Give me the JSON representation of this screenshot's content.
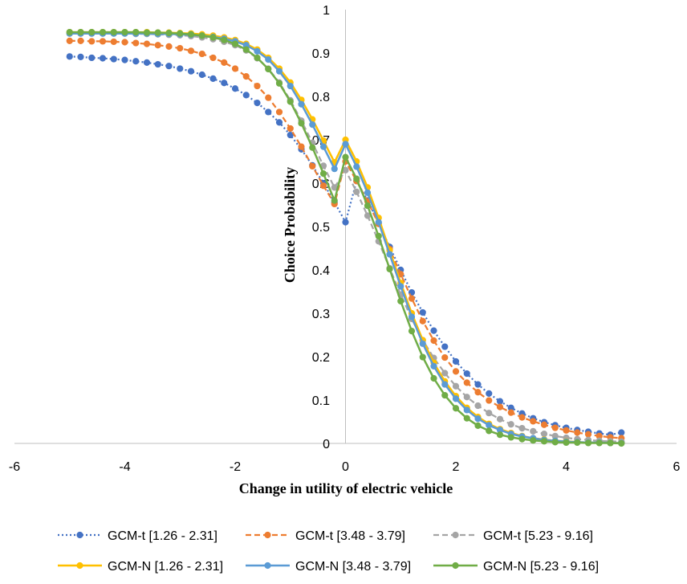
{
  "chart_data": {
    "type": "line",
    "title": "",
    "xlabel": "Change in utility of electric vehicle",
    "ylabel": "Choice Probability",
    "xlim": [
      -6,
      6
    ],
    "ylim": [
      0,
      1
    ],
    "grid": false,
    "legend_position": "bottom",
    "x_ticks": [
      "-6",
      "-4",
      "-2",
      "0",
      "2",
      "4",
      "6"
    ],
    "y_ticks": [
      "0",
      "0.1",
      "0.2",
      "0.3",
      "0.4",
      "0.5",
      "0.6",
      "0.7",
      "0.8",
      "0.9",
      "1"
    ],
    "x": [
      -5,
      -4.8,
      -4.6,
      -4.4,
      -4.2,
      -4,
      -3.8,
      -3.6,
      -3.4,
      -3.2,
      -3,
      -2.8,
      -2.6,
      -2.4,
      -2.2,
      -2,
      -1.8,
      -1.6,
      -1.4,
      -1.2,
      -1,
      -0.8,
      -0.6,
      -0.4,
      -0.2,
      0,
      0.2,
      0.4,
      0.6,
      0.8,
      1,
      1.2,
      1.4,
      1.6,
      1.8,
      2,
      2.2,
      2.4,
      2.6,
      2.8,
      3,
      3.2,
      3.4,
      3.6,
      3.8,
      4,
      4.2,
      4.4,
      4.6,
      4.8,
      5
    ],
    "series": [
      {
        "name": "GCM-t [1.26 - 2.31]",
        "color": "#4472C4",
        "dash": "dotted",
        "values": [
          0.892,
          0.891,
          0.889,
          0.888,
          0.886,
          0.884,
          0.881,
          0.878,
          0.874,
          0.87,
          0.864,
          0.858,
          0.85,
          0.841,
          0.831,
          0.818,
          0.803,
          0.785,
          0.764,
          0.74,
          0.711,
          0.678,
          0.641,
          0.6,
          0.556,
          0.51,
          0.605,
          0.56,
          0.508,
          0.453,
          0.4,
          0.348,
          0.302,
          0.26,
          0.223,
          0.189,
          0.161,
          0.136,
          0.115,
          0.097,
          0.082,
          0.069,
          0.058,
          0.049,
          0.042,
          0.036,
          0.031,
          0.027,
          0.023,
          0.02,
          0.025
        ]
      },
      {
        "name": "GCM-t [3.48 - 3.79]",
        "color": "#ED7D31",
        "dash": "dashed",
        "values": [
          0.928,
          0.928,
          0.927,
          0.927,
          0.926,
          0.925,
          0.923,
          0.921,
          0.918,
          0.915,
          0.911,
          0.905,
          0.898,
          0.889,
          0.878,
          0.864,
          0.846,
          0.824,
          0.797,
          0.764,
          0.726,
          0.684,
          0.639,
          0.594,
          0.552,
          0.65,
          0.605,
          0.558,
          0.506,
          0.448,
          0.39,
          0.334,
          0.282,
          0.237,
          0.198,
          0.166,
          0.14,
          0.118,
          0.099,
          0.084,
          0.071,
          0.06,
          0.051,
          0.043,
          0.036,
          0.03,
          0.025,
          0.021,
          0.017,
          0.014,
          0.012
        ]
      },
      {
        "name": "GCM-t [5.23 - 9.16]",
        "color": "#A5A5A5",
        "dash": "dashed",
        "values": [
          0.945,
          0.945,
          0.945,
          0.945,
          0.945,
          0.945,
          0.944,
          0.944,
          0.943,
          0.942,
          0.941,
          0.939,
          0.936,
          0.932,
          0.926,
          0.918,
          0.906,
          0.888,
          0.864,
          0.832,
          0.791,
          0.744,
          0.693,
          0.64,
          0.59,
          0.63,
          0.58,
          0.525,
          0.466,
          0.404,
          0.343,
          0.287,
          0.238,
          0.197,
          0.162,
          0.132,
          0.107,
          0.087,
          0.07,
          0.056,
          0.044,
          0.035,
          0.028,
          0.022,
          0.017,
          0.013,
          0.01,
          0.008,
          0.006,
          0.005,
          0.004
        ]
      },
      {
        "name": "GCM-N [1.26 - 2.31]",
        "color": "#FFC000",
        "dash": "solid",
        "values": [
          0.948,
          0.948,
          0.948,
          0.948,
          0.948,
          0.948,
          0.948,
          0.948,
          0.947,
          0.947,
          0.946,
          0.945,
          0.943,
          0.94,
          0.936,
          0.93,
          0.921,
          0.908,
          0.889,
          0.864,
          0.832,
          0.792,
          0.747,
          0.698,
          0.648,
          0.7,
          0.65,
          0.59,
          0.52,
          0.445,
          0.37,
          0.3,
          0.238,
          0.186,
          0.143,
          0.109,
          0.082,
          0.061,
          0.045,
          0.033,
          0.024,
          0.017,
          0.012,
          0.009,
          0.006,
          0.005,
          0.003,
          0.002,
          0.002,
          0.001,
          0.001
        ]
      },
      {
        "name": "GCM-N [3.48 - 3.79]",
        "color": "#5B9BD5",
        "dash": "solid",
        "values": [
          0.945,
          0.945,
          0.945,
          0.945,
          0.945,
          0.945,
          0.945,
          0.945,
          0.944,
          0.944,
          0.943,
          0.942,
          0.94,
          0.937,
          0.933,
          0.927,
          0.918,
          0.904,
          0.885,
          0.858,
          0.824,
          0.782,
          0.735,
          0.684,
          0.633,
          0.69,
          0.638,
          0.578,
          0.51,
          0.436,
          0.362,
          0.292,
          0.23,
          0.178,
          0.136,
          0.103,
          0.077,
          0.057,
          0.042,
          0.031,
          0.022,
          0.016,
          0.012,
          0.008,
          0.006,
          0.004,
          0.003,
          0.002,
          0.002,
          0.001,
          0.001
        ]
      },
      {
        "name": "GCM-N [5.23 - 9.16]",
        "color": "#70AD47",
        "dash": "solid",
        "values": [
          0.948,
          0.948,
          0.948,
          0.948,
          0.948,
          0.948,
          0.948,
          0.947,
          0.947,
          0.946,
          0.945,
          0.943,
          0.94,
          0.936,
          0.93,
          0.921,
          0.908,
          0.889,
          0.863,
          0.83,
          0.788,
          0.738,
          0.682,
          0.622,
          0.56,
          0.66,
          0.61,
          0.548,
          0.478,
          0.402,
          0.328,
          0.259,
          0.199,
          0.15,
          0.111,
          0.081,
          0.058,
          0.041,
          0.029,
          0.02,
          0.014,
          0.01,
          0.007,
          0.005,
          0.003,
          0.002,
          0.002,
          0.001,
          0.001,
          0.001,
          0.0
        ]
      }
    ]
  }
}
